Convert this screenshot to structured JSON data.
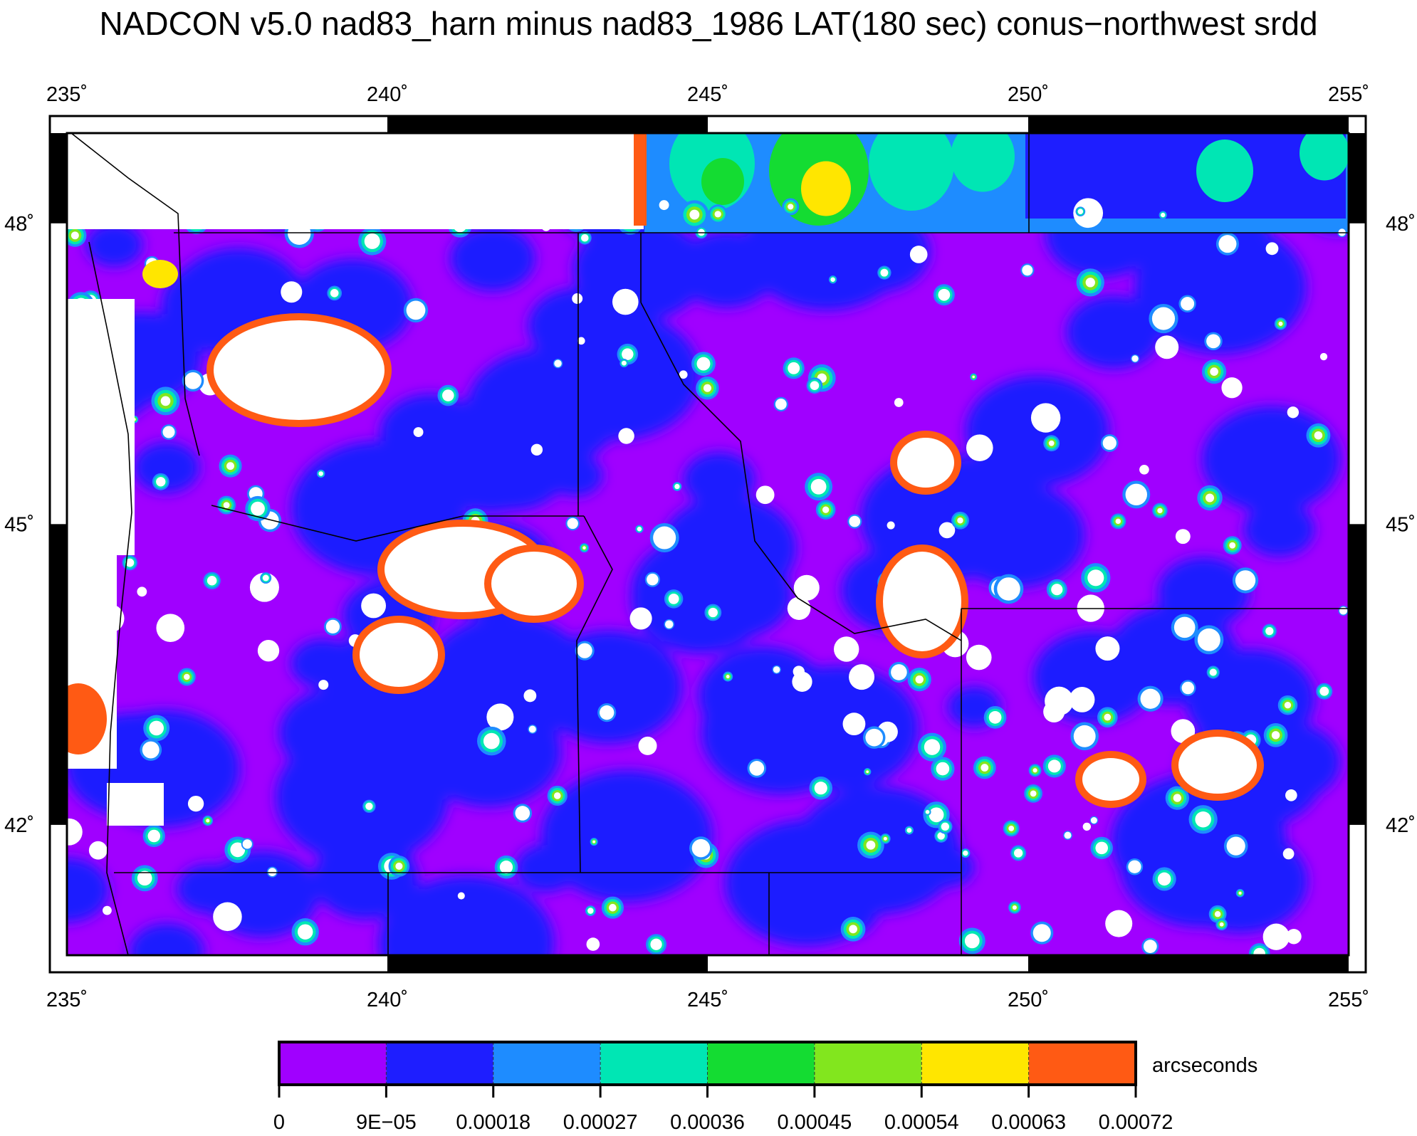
{
  "title": "NADCON v5.0 nad83_harn minus nad83_1986 LAT(180 sec) conus−northwest srdd",
  "map": {
    "lon_range": [
      235,
      255
    ],
    "lat_range": [
      40.7,
      48.9
    ],
    "lon_ticks": [
      {
        "value": 235,
        "label": "235˚"
      },
      {
        "value": 240,
        "label": "240˚"
      },
      {
        "value": 245,
        "label": "245˚"
      },
      {
        "value": 250,
        "label": "250˚"
      },
      {
        "value": 255,
        "label": "255˚"
      }
    ],
    "lat_ticks": [
      {
        "value": 48,
        "label": "48˚"
      },
      {
        "value": 45,
        "label": "45˚"
      },
      {
        "value": 42,
        "label": "42˚"
      }
    ],
    "no_data_color": "#ffffff",
    "boundary_color": "#000000"
  },
  "colorbar": {
    "unit_label": "arcseconds",
    "tick_labels": [
      "0",
      "9E−05",
      "0.00018",
      "0.00027",
      "0.00036",
      "0.00045",
      "0.00054",
      "0.00063",
      "0.00072"
    ],
    "colors": [
      "#a000ff",
      "#1e1eff",
      "#1e8cff",
      "#00e6b4",
      "#14dc32",
      "#82e61e",
      "#ffe600",
      "#ff5a14"
    ]
  }
}
